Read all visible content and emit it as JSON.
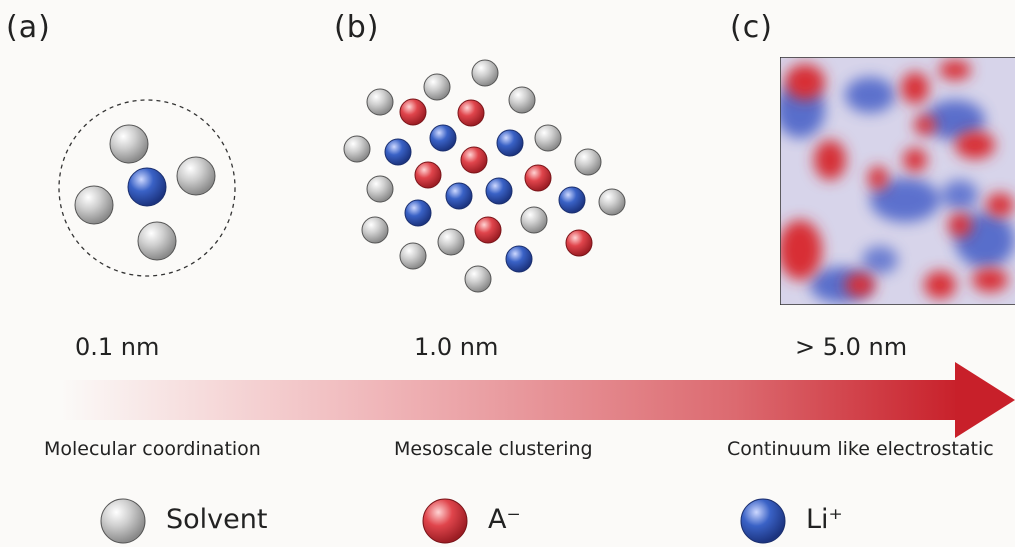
{
  "panels": {
    "a": {
      "label": "(a)",
      "scale": "0.1 nm",
      "description": "Molecular coordination"
    },
    "b": {
      "label": "(b)",
      "scale": "1.0 nm",
      "description": "Mesoscale clustering"
    },
    "c": {
      "label": "(c)",
      "scale": "> 5.0 nm",
      "description": "Continuum like electrostatic"
    }
  },
  "legend": {
    "solvent": {
      "label": "Solvent"
    },
    "anion": {
      "label": "A⁻"
    },
    "lithium": {
      "label": "Li⁺"
    }
  },
  "colors": {
    "solvent": "#b9b9b9",
    "anion": "#d9363e",
    "lithium": "#2e55b8",
    "arrow": "#c8202a",
    "background": "#fbfaf8"
  }
}
